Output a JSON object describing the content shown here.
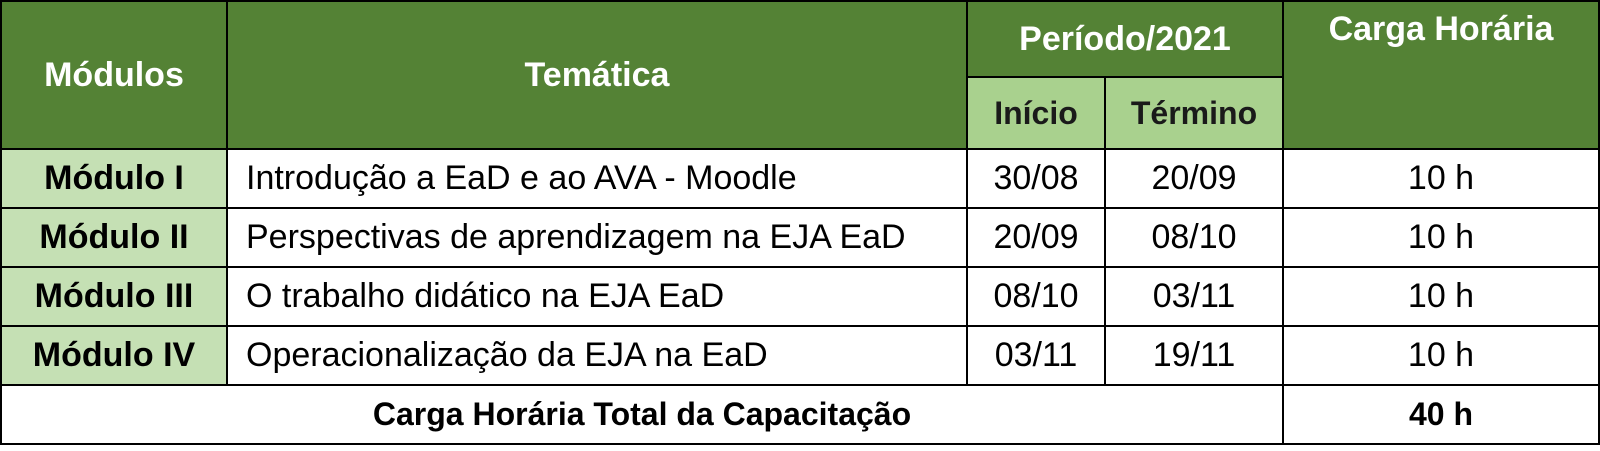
{
  "header": {
    "modules": "Módulos",
    "theme": "Temática",
    "period": "Período/2021",
    "start": "Início",
    "end": "Término",
    "workload": "Carga Horária"
  },
  "rows": [
    {
      "module": "Módulo I",
      "theme": "Introdução a EaD e ao AVA - Moodle",
      "start": "30/08",
      "end": "20/09",
      "hours": "10 h"
    },
    {
      "module": "Módulo II",
      "theme": "Perspectivas de aprendizagem na EJA EaD",
      "start": "20/09",
      "end": "08/10",
      "hours": "10 h"
    },
    {
      "module": "Módulo III",
      "theme": "O trabalho didático na EJA EaD",
      "start": "08/10",
      "end": "03/11",
      "hours": "10 h"
    },
    {
      "module": "Módulo IV",
      "theme": "Operacionalização da EJA na EaD",
      "start": "03/11",
      "end": "19/11",
      "hours": "10 h"
    }
  ],
  "total": {
    "label": "Carga Horária Total da Capacitação",
    "value": "40 h"
  },
  "colors": {
    "header_green": "#548235",
    "subheader_green": "#a9d18e",
    "module_green": "#c5e0b4",
    "border": "#000000"
  }
}
